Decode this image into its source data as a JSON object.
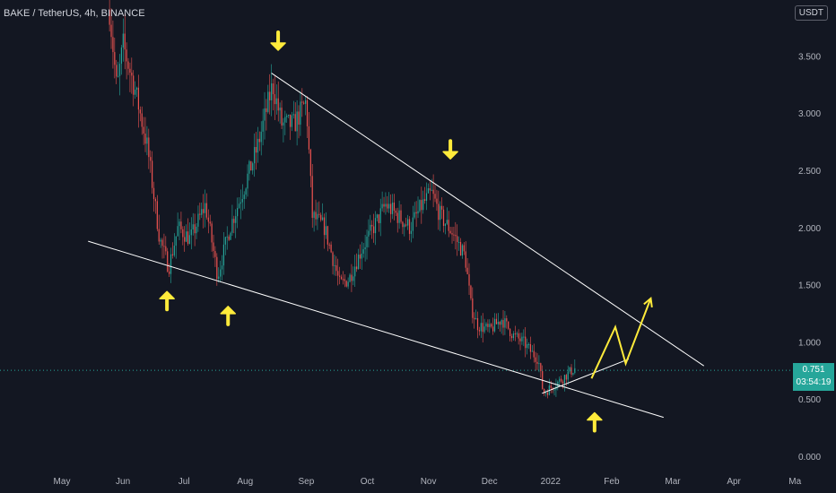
{
  "header": {
    "symbol_label": "BAKE / TetherUS, 4h, BINANCE",
    "currency": "USDT"
  },
  "last_price": {
    "value": "0.751",
    "countdown": "03:54:19"
  },
  "colors": {
    "background": "#131722",
    "up": "#26a69a",
    "down": "#ef5350",
    "trendline": "#ffffff",
    "annotation": "#ffeb3b"
  },
  "chart_data": {
    "type": "candlestick",
    "title": "BAKE / TetherUS, 4h, BINANCE",
    "xlabel": "",
    "ylabel": "",
    "y_ticks": [
      "3.500",
      "3.000",
      "2.500",
      "2.000",
      "1.500",
      "1.000",
      "0.500",
      "0.000"
    ],
    "x_ticks": [
      "May",
      "Jun",
      "Jul",
      "Aug",
      "Sep",
      "Oct",
      "Nov",
      "Dec",
      "2022",
      "Feb",
      "Mar",
      "Apr",
      "Ma"
    ],
    "ylim": [
      0,
      3.85
    ],
    "price_path": [
      {
        "x": 0.78,
        "y": 3.9
      },
      {
        "x": 0.9,
        "y": 3.2
      },
      {
        "x": 1.0,
        "y": 3.6
      },
      {
        "x": 1.2,
        "y": 3.2
      },
      {
        "x": 1.4,
        "y": 2.7
      },
      {
        "x": 1.6,
        "y": 1.9
      },
      {
        "x": 1.75,
        "y": 1.65
      },
      {
        "x": 1.9,
        "y": 2.0
      },
      {
        "x": 2.1,
        "y": 1.9
      },
      {
        "x": 2.35,
        "y": 2.2
      },
      {
        "x": 2.55,
        "y": 1.58
      },
      {
        "x": 2.75,
        "y": 2.0
      },
      {
        "x": 2.95,
        "y": 2.3
      },
      {
        "x": 3.2,
        "y": 2.7
      },
      {
        "x": 3.45,
        "y": 3.25
      },
      {
        "x": 3.6,
        "y": 2.9
      },
      {
        "x": 3.8,
        "y": 2.9
      },
      {
        "x": 4.0,
        "y": 3.1
      },
      {
        "x": 4.1,
        "y": 2.1
      },
      {
        "x": 4.3,
        "y": 2.0
      },
      {
        "x": 4.55,
        "y": 1.5
      },
      {
        "x": 4.7,
        "y": 1.55
      },
      {
        "x": 4.9,
        "y": 1.8
      },
      {
        "x": 5.1,
        "y": 2.0
      },
      {
        "x": 5.3,
        "y": 2.2
      },
      {
        "x": 5.5,
        "y": 2.1
      },
      {
        "x": 5.7,
        "y": 2.0
      },
      {
        "x": 5.9,
        "y": 2.2
      },
      {
        "x": 6.05,
        "y": 2.3
      },
      {
        "x": 6.2,
        "y": 2.1
      },
      {
        "x": 6.4,
        "y": 1.95
      },
      {
        "x": 6.6,
        "y": 1.75
      },
      {
        "x": 6.7,
        "y": 1.3
      },
      {
        "x": 6.8,
        "y": 1.15
      },
      {
        "x": 7.0,
        "y": 1.1
      },
      {
        "x": 7.2,
        "y": 1.2
      },
      {
        "x": 7.4,
        "y": 1.05
      },
      {
        "x": 7.55,
        "y": 1.0
      },
      {
        "x": 7.7,
        "y": 0.9
      },
      {
        "x": 7.8,
        "y": 0.85
      },
      {
        "x": 7.88,
        "y": 0.55
      },
      {
        "x": 8.0,
        "y": 0.6
      },
      {
        "x": 8.15,
        "y": 0.66
      },
      {
        "x": 8.3,
        "y": 0.73
      },
      {
        "x": 8.4,
        "y": 0.77
      }
    ],
    "trendlines": [
      {
        "from": {
          "x": 3.43,
          "y": 3.35
        },
        "to": {
          "x": 10.51,
          "y": 0.79
        }
      },
      {
        "from": {
          "x": 0.43,
          "y": 1.88
        },
        "to": {
          "x": 9.85,
          "y": 0.34
        }
      },
      {
        "from": {
          "x": 7.86,
          "y": 0.55
        },
        "to": {
          "x": 9.28,
          "y": 0.85
        }
      }
    ],
    "projection": [
      {
        "x": 8.67,
        "y": 0.68
      },
      {
        "x": 9.06,
        "y": 1.13
      },
      {
        "x": 9.23,
        "y": 0.81
      },
      {
        "x": 9.64,
        "y": 1.38
      }
    ],
    "annotations": [
      {
        "kind": "arrow-down",
        "x": 3.54,
        "y": 3.55
      },
      {
        "kind": "arrow-down",
        "x": 6.36,
        "y": 2.6
      },
      {
        "kind": "arrow-up",
        "x": 1.72,
        "y": 1.44
      },
      {
        "kind": "arrow-up",
        "x": 2.72,
        "y": 1.31
      },
      {
        "kind": "arrow-up",
        "x": 8.72,
        "y": 0.38
      }
    ],
    "last_price_line": 0.751,
    "grid": false,
    "legend": "none"
  }
}
